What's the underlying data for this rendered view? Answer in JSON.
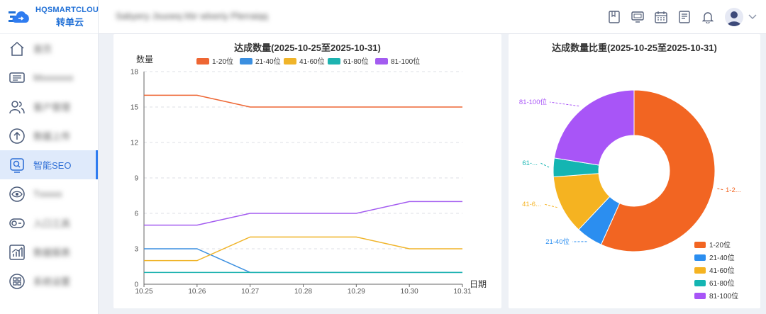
{
  "app": {
    "logo_en": "HQSMARTCLOUD",
    "logo_cn": "转单云",
    "header_title": "Sabyery Jsuoeq lrbr wlxeriy Plerraiqq"
  },
  "sidebar": {
    "items": [
      {
        "label": "首页",
        "icon": "home-icon",
        "blurred": true
      },
      {
        "label": "Mxxxxxxx",
        "icon": "monitor-list-icon",
        "blurred": true
      },
      {
        "label": "客户管理",
        "icon": "users-icon",
        "blurred": true
      },
      {
        "label": "数据上传",
        "icon": "upload-icon",
        "blurred": true
      },
      {
        "label": "智能SEO",
        "icon": "seo-icon",
        "blurred": false,
        "active": true
      },
      {
        "label": "Txxxxx",
        "icon": "pie-eye-icon",
        "blurred": true
      },
      {
        "label": "入口工具",
        "icon": "toggle-icon",
        "blurred": true
      },
      {
        "label": "数据报表",
        "icon": "bar-chart-icon",
        "blurred": true
      },
      {
        "label": "系统设置",
        "icon": "grid-icon",
        "blurred": true
      }
    ]
  },
  "header": {
    "icons": [
      "bookmark-icon",
      "screen-icon",
      "calendar-icon",
      "document-icon",
      "bell-icon"
    ]
  },
  "line_chart": {
    "title": "达成数量(2025-10-25至2025-10-31)",
    "ylabel": "数量",
    "xlabel": "日期"
  },
  "pie_chart": {
    "title": "达成数量比重(2025-10-25至2025-10-31)",
    "slice_labels": [
      "1-2...",
      "21-40位",
      "41-6...",
      "61-...",
      "81-100位"
    ]
  },
  "chart_data": [
    {
      "type": "line",
      "title": "达成数量(2025-10-25至2025-10-31)",
      "xlabel": "日期",
      "ylabel": "数量",
      "categories": [
        "10.25",
        "10.26",
        "10.27",
        "10.28",
        "10.29",
        "10.30",
        "10.31"
      ],
      "ylim": [
        0,
        18
      ],
      "yticks": [
        0,
        3,
        6,
        9,
        12,
        15,
        18
      ],
      "grid": true,
      "legend": "top",
      "series": [
        {
          "name": "1-20位",
          "color": "#ee6633",
          "values": [
            16,
            16,
            15,
            15,
            15,
            15,
            15
          ]
        },
        {
          "name": "21-40位",
          "color": "#3b8fe0",
          "values": [
            3,
            3,
            1,
            1,
            1,
            1,
            1
          ]
        },
        {
          "name": "41-60位",
          "color": "#f0b429",
          "values": [
            2,
            2,
            4,
            4,
            4,
            3,
            3
          ]
        },
        {
          "name": "61-80位",
          "color": "#1db3b0",
          "values": [
            1,
            1,
            1,
            1,
            1,
            1,
            1
          ]
        },
        {
          "name": "81-100位",
          "color": "#a35cf0",
          "values": [
            5,
            5,
            6,
            6,
            6,
            7,
            7
          ]
        }
      ]
    },
    {
      "type": "pie",
      "title": "达成数量比重(2025-10-25至2025-10-31)",
      "donut": true,
      "legend": "bottom-right",
      "slices": [
        {
          "name": "1-20位",
          "color": "#f26522",
          "value": 106
        },
        {
          "name": "21-40位",
          "color": "#2b8ef0",
          "value": 10
        },
        {
          "name": "41-60位",
          "color": "#f5b321",
          "value": 22
        },
        {
          "name": "61-80位",
          "color": "#14b5b2",
          "value": 7
        },
        {
          "name": "81-100位",
          "color": "#a855f7",
          "value": 42
        }
      ]
    }
  ]
}
